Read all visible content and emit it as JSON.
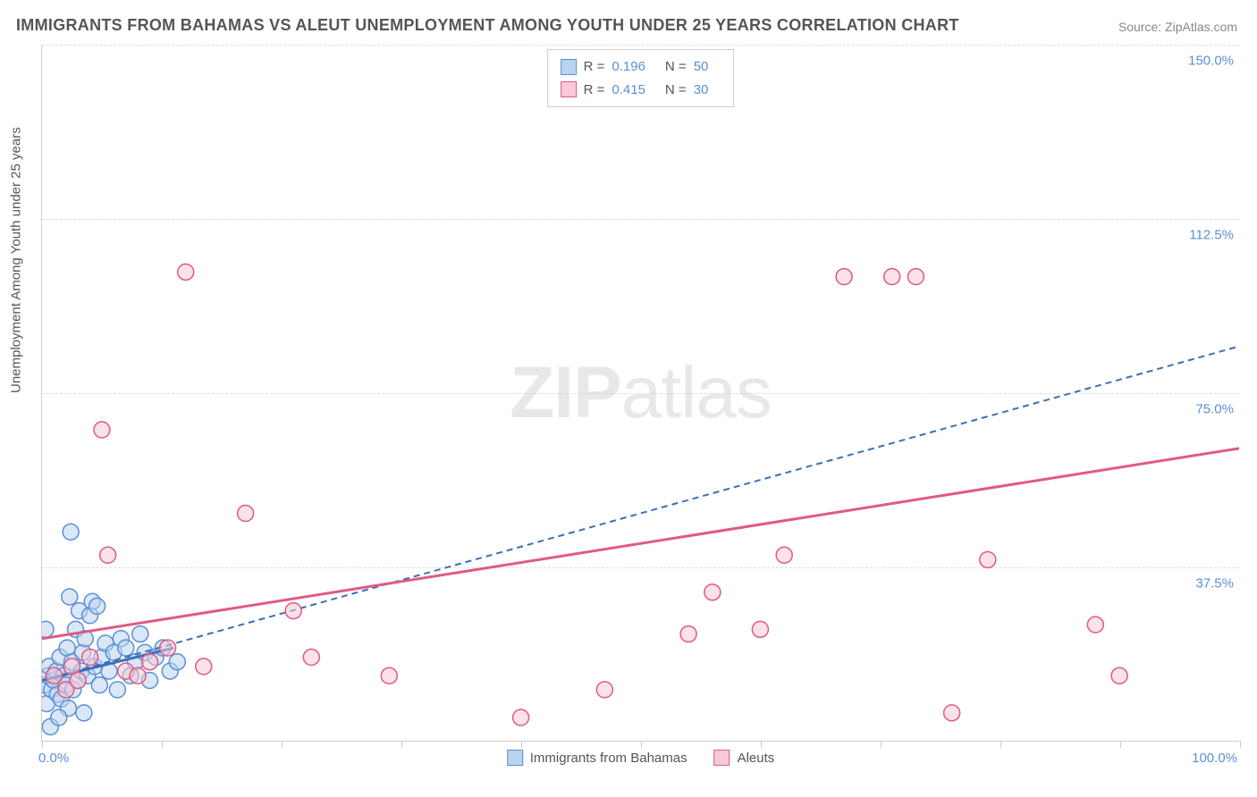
{
  "title": "IMMIGRANTS FROM BAHAMAS VS ALEUT UNEMPLOYMENT AMONG YOUTH UNDER 25 YEARS CORRELATION CHART",
  "source": "Source: ZipAtlas.com",
  "watermark_bold": "ZIP",
  "watermark_light": "atlas",
  "chart": {
    "type": "scatter",
    "ylabel": "Unemployment Among Youth under 25 years",
    "xlim": [
      0,
      100
    ],
    "ylim": [
      0,
      150
    ],
    "x_ticks": [
      0,
      10,
      20,
      30,
      40,
      50,
      60,
      70,
      80,
      90,
      100
    ],
    "x_tick_labels": {
      "0": "0.0%",
      "100": "100.0%"
    },
    "y_gridlines": [
      37.5,
      75.0,
      112.5,
      150.0
    ],
    "y_tick_labels": [
      "37.5%",
      "75.0%",
      "112.5%",
      "150.0%"
    ],
    "background_color": "#ffffff",
    "grid_color": "#dddddd",
    "axis_color": "#cccccc",
    "label_color": "#555555",
    "tick_label_color": "#5b8fd6",
    "label_fontsize": 15,
    "title_fontsize": 18,
    "marker_radius": 9,
    "marker_stroke_width": 1.5,
    "series": [
      {
        "name": "Immigrants from Bahamas",
        "fill": "#b9d4f0",
        "stroke": "#5b8fd6",
        "fill_opacity": 0.55,
        "R": "0.196",
        "N": "50",
        "trendline": {
          "x1": 0,
          "y1": 13,
          "x2": 100,
          "y2": 85,
          "dash": "7 5",
          "stroke": "#3b6fb8",
          "short_x2": 11,
          "short_y2": 20,
          "short_stroke_width": 3
        },
        "points": [
          [
            0.2,
            12
          ],
          [
            0.4,
            8
          ],
          [
            0.5,
            14
          ],
          [
            0.6,
            16
          ],
          [
            0.8,
            11
          ],
          [
            1.0,
            13
          ],
          [
            1.2,
            15
          ],
          [
            1.3,
            10
          ],
          [
            1.5,
            18
          ],
          [
            1.6,
            9
          ],
          [
            1.8,
            14
          ],
          [
            2.0,
            12
          ],
          [
            2.1,
            20
          ],
          [
            2.2,
            7
          ],
          [
            2.4,
            45
          ],
          [
            2.5,
            17
          ],
          [
            2.6,
            11
          ],
          [
            2.8,
            24
          ],
          [
            3.0,
            13
          ],
          [
            3.1,
            28
          ],
          [
            3.3,
            15
          ],
          [
            3.4,
            19
          ],
          [
            3.5,
            6
          ],
          [
            3.6,
            22
          ],
          [
            3.8,
            14
          ],
          [
            4.0,
            27
          ],
          [
            4.2,
            30
          ],
          [
            4.4,
            16
          ],
          [
            4.6,
            29
          ],
          [
            4.8,
            12
          ],
          [
            5.0,
            18
          ],
          [
            5.3,
            21
          ],
          [
            5.6,
            15
          ],
          [
            6.0,
            19
          ],
          [
            6.3,
            11
          ],
          [
            6.6,
            22
          ],
          [
            7.0,
            20
          ],
          [
            7.4,
            14
          ],
          [
            7.8,
            17
          ],
          [
            8.2,
            23
          ],
          [
            8.6,
            19
          ],
          [
            9.0,
            13
          ],
          [
            9.5,
            18
          ],
          [
            10.1,
            20
          ],
          [
            10.7,
            15
          ],
          [
            11.3,
            17
          ],
          [
            0.3,
            24
          ],
          [
            0.7,
            3
          ],
          [
            1.4,
            5
          ],
          [
            2.3,
            31
          ]
        ]
      },
      {
        "name": "Aleuts",
        "fill": "#f8c9d6",
        "stroke": "#e05a84",
        "fill_opacity": 0.55,
        "R": "0.415",
        "N": "30",
        "trendline": {
          "x1": 0,
          "y1": 22,
          "x2": 100,
          "y2": 63,
          "dash": "none",
          "stroke": "#e05a84",
          "stroke_width": 3
        },
        "points": [
          [
            1.0,
            14
          ],
          [
            2.0,
            11
          ],
          [
            2.5,
            16
          ],
          [
            3.0,
            13
          ],
          [
            4.0,
            18
          ],
          [
            5.0,
            67
          ],
          [
            5.5,
            40
          ],
          [
            7.0,
            15
          ],
          [
            8.0,
            14
          ],
          [
            9.0,
            17
          ],
          [
            10.5,
            20
          ],
          [
            12.0,
            101
          ],
          [
            13.5,
            16
          ],
          [
            17.0,
            49
          ],
          [
            21.0,
            28
          ],
          [
            22.5,
            18
          ],
          [
            29.0,
            14
          ],
          [
            40.0,
            5
          ],
          [
            47.0,
            11
          ],
          [
            54.0,
            23
          ],
          [
            56.0,
            32
          ],
          [
            60.0,
            24
          ],
          [
            62.0,
            40
          ],
          [
            67.0,
            100
          ],
          [
            71.0,
            100
          ],
          [
            73.0,
            100
          ],
          [
            76.0,
            6
          ],
          [
            79.0,
            39
          ],
          [
            88.0,
            25
          ],
          [
            90.0,
            14
          ]
        ]
      }
    ]
  },
  "legend_bottom": [
    {
      "label": "Immigrants from Bahamas",
      "fill": "#b9d4f0",
      "stroke": "#5b8fd6"
    },
    {
      "label": "Aleuts",
      "fill": "#f8c9d6",
      "stroke": "#e05a84"
    }
  ]
}
